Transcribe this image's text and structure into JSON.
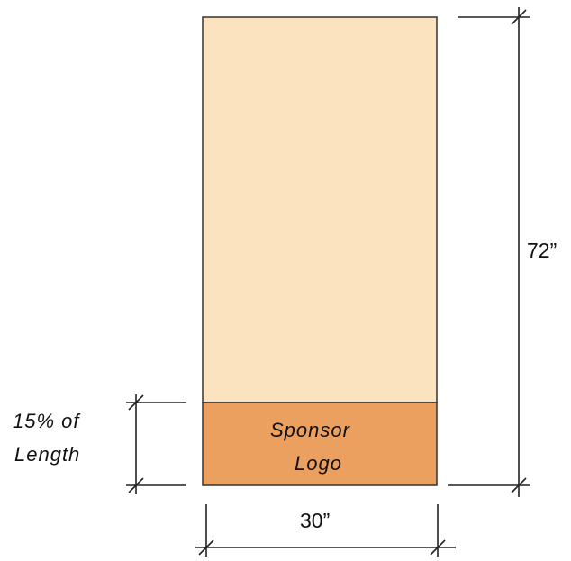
{
  "diagram": {
    "banner": {
      "upper_color": "#FBE3BF",
      "logo_color": "#EBA05F",
      "outline_color": "#333333",
      "sponsor_line1": "Sponsor",
      "sponsor_line2": "Logo"
    },
    "dimensions": {
      "height_label": "72”",
      "width_label": "30”",
      "logo_band_line1": "15% of",
      "logo_band_line2": "Length"
    }
  }
}
